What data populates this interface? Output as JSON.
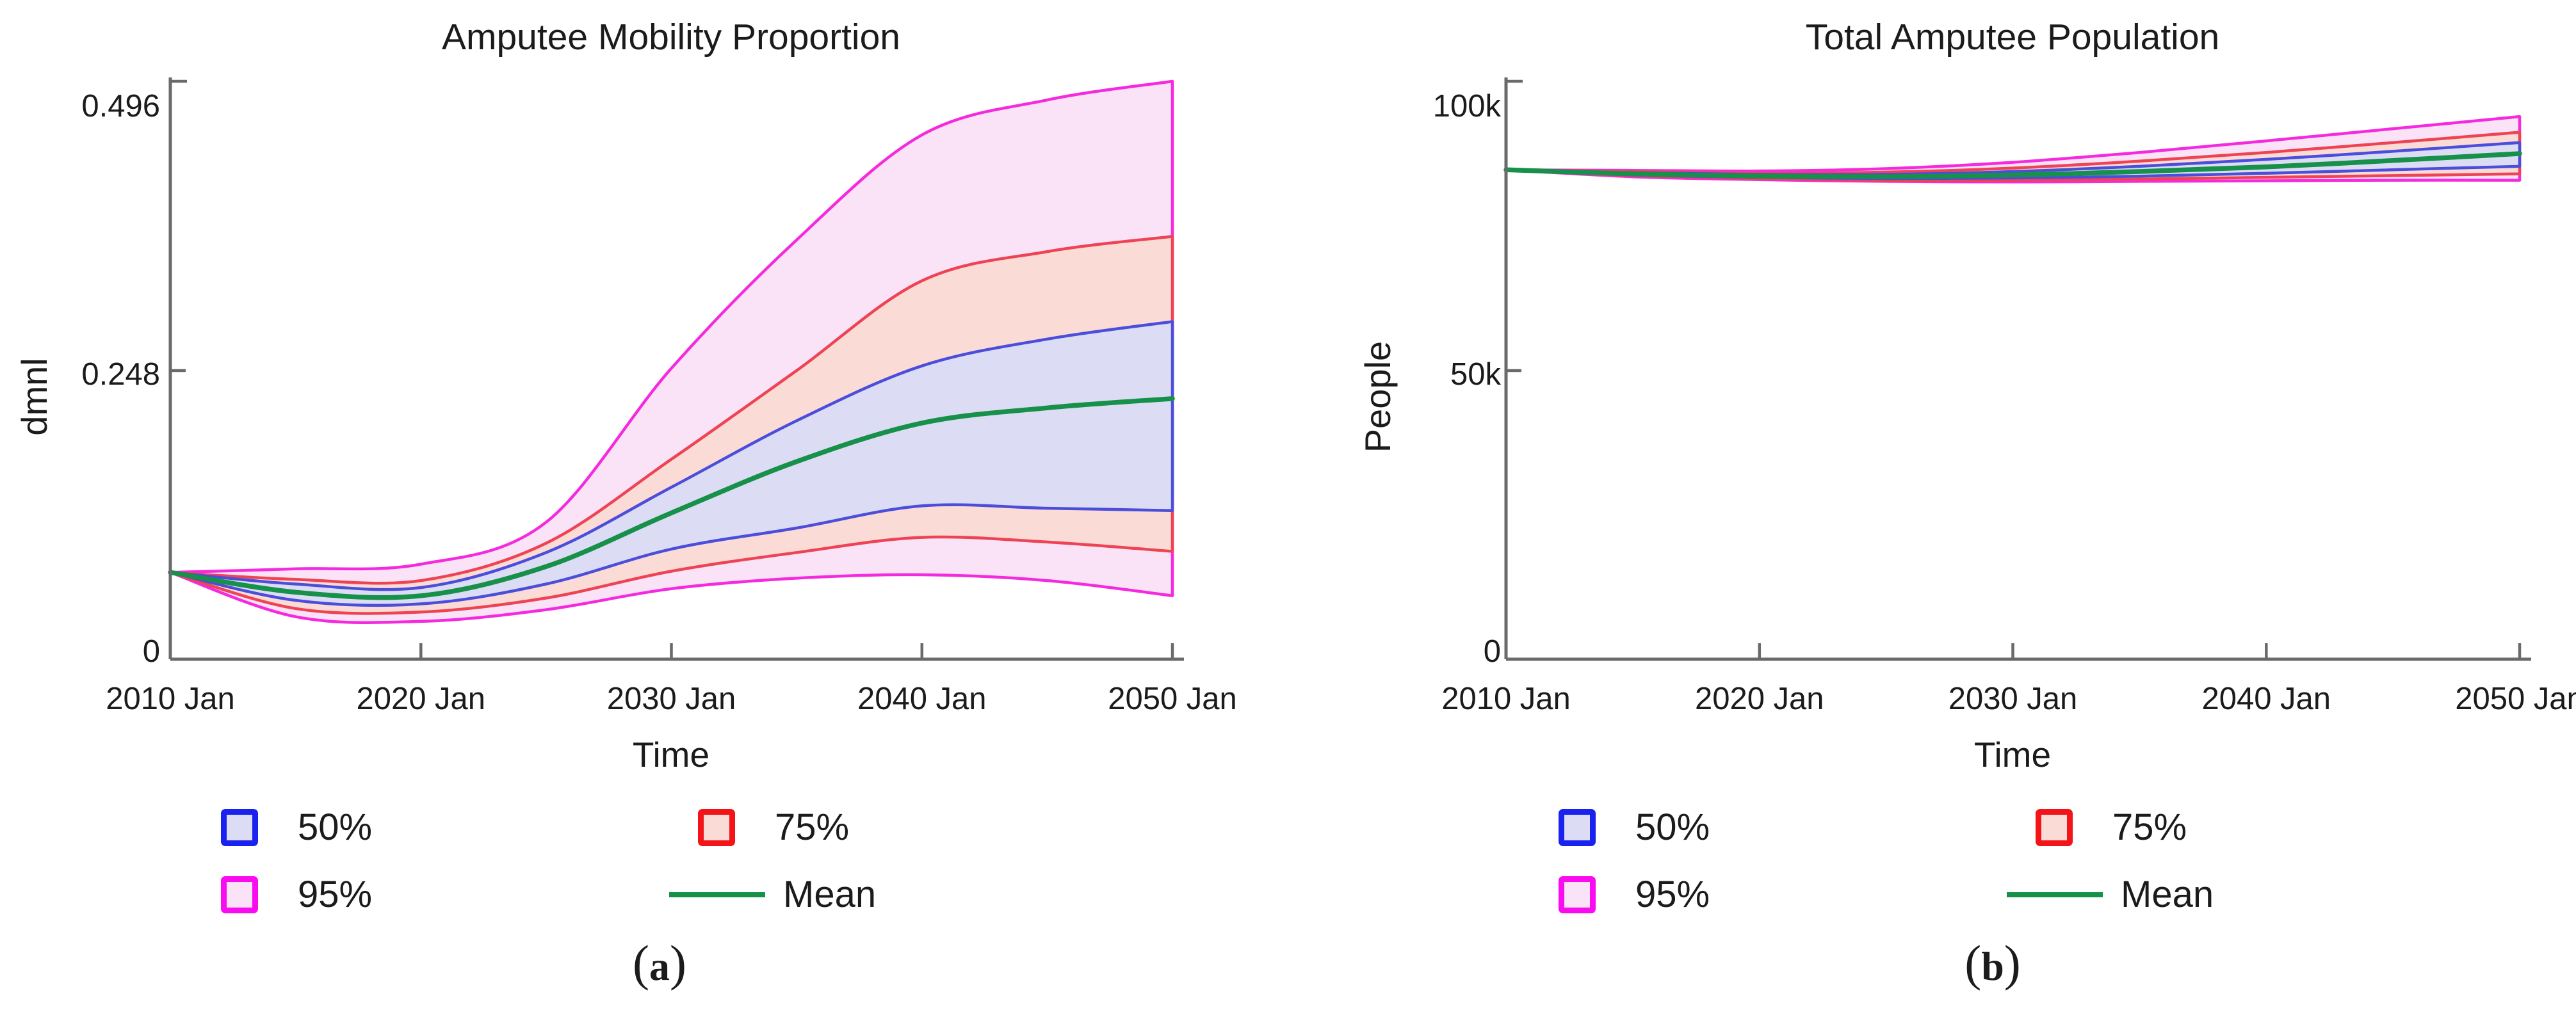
{
  "figure": {
    "background": "#ffffff",
    "description_visible_panels": 2
  },
  "legend": {
    "items": [
      {
        "label": "50%",
        "swatch": "band50"
      },
      {
        "label": "75%",
        "swatch": "band75"
      },
      {
        "label": "95%",
        "swatch": "band95"
      },
      {
        "label": "Mean",
        "swatch": "mean"
      }
    ]
  },
  "colors": {
    "band50": {
      "edge_line": "#4b4ddb",
      "edge_legend": "#1a22f0",
      "fill": "#dcddf5"
    },
    "band75": {
      "edge_line": "#ee4355",
      "edge_legend": "#f21418",
      "fill": "#fadbd5"
    },
    "band95": {
      "edge_line": "#f52ade",
      "edge_legend": "#fb0cf0",
      "fill": "#fae3f6"
    },
    "mean": {
      "line": "#17904a"
    },
    "axis": "#6a6a6a",
    "text": "#1b1b1b"
  },
  "chart_data": [
    {
      "type": "area",
      "subtype": "fan-confidence-bands",
      "title": "Amputee Mobility Proportion",
      "xlabel": "Time",
      "ylabel": "dmnl",
      "caption": {
        "open": "(",
        "letter": "a",
        "close": ")"
      },
      "x": [
        2010,
        2015,
        2020,
        2025,
        2030,
        2035,
        2040,
        2045,
        2050
      ],
      "x_tick_labels": [
        "2010 Jan",
        "2020 Jan",
        "2030 Jan",
        "2040 Jan",
        "2050 Jan"
      ],
      "y_ticks": [
        {
          "label": "0.496",
          "value": 0.496
        },
        {
          "label": "0.248",
          "value": 0.248
        },
        {
          "label": "0",
          "value": 0
        }
      ],
      "ylim": [
        0,
        0.496
      ],
      "grid": false,
      "legend_position": "bottom",
      "bands": [
        {
          "name": "95%",
          "color_key": "band95",
          "upper": [
            0.075,
            0.078,
            0.082,
            0.118,
            0.25,
            0.36,
            0.45,
            0.48,
            0.496
          ],
          "lower": [
            0.075,
            0.037,
            0.033,
            0.043,
            0.061,
            0.07,
            0.073,
            0.068,
            0.055
          ]
        },
        {
          "name": "75%",
          "color_key": "band75",
          "upper": [
            0.075,
            0.069,
            0.068,
            0.1,
            0.172,
            0.248,
            0.325,
            0.35,
            0.363
          ],
          "lower": [
            0.075,
            0.044,
            0.041,
            0.053,
            0.076,
            0.092,
            0.105,
            0.101,
            0.093
          ]
        },
        {
          "name": "50%",
          "color_key": "band50",
          "upper": [
            0.075,
            0.065,
            0.062,
            0.092,
            0.148,
            0.205,
            0.252,
            0.275,
            0.29
          ],
          "lower": [
            0.075,
            0.051,
            0.048,
            0.065,
            0.095,
            0.113,
            0.132,
            0.13,
            0.128
          ]
        }
      ],
      "mean": [
        0.075,
        0.058,
        0.055,
        0.08,
        0.126,
        0.17,
        0.203,
        0.216,
        0.224
      ]
    },
    {
      "type": "area",
      "subtype": "fan-confidence-bands",
      "title": "Total Amputee Population",
      "xlabel": "Time",
      "ylabel": "People",
      "caption": {
        "open": "(",
        "letter": "b",
        "close": ")"
      },
      "x": [
        2010,
        2015,
        2020,
        2025,
        2030,
        2035,
        2040,
        2045,
        2050
      ],
      "x_tick_labels": [
        "2010 Jan",
        "2020 Jan",
        "2030 Jan",
        "2040 Jan",
        "2050 Jan"
      ],
      "y_ticks": [
        {
          "label": "100k",
          "value": 100000
        },
        {
          "label": "50k",
          "value": 50000
        },
        {
          "label": "0",
          "value": 0
        }
      ],
      "ylim": [
        0,
        100000
      ],
      "grid": false,
      "legend_position": "bottom",
      "bands": [
        {
          "name": "95%",
          "color_key": "band95",
          "upper": [
            84700,
            84600,
            84500,
            84900,
            86000,
            87700,
            89700,
            91800,
            93900
          ],
          "lower": [
            84700,
            83500,
            83000,
            82700,
            82600,
            82700,
            82800,
            82900,
            82900
          ]
        },
        {
          "name": "75%",
          "color_key": "band75",
          "upper": [
            84700,
            84400,
            84100,
            84300,
            85000,
            86200,
            87700,
            89400,
            91200
          ],
          "lower": [
            84700,
            83700,
            83200,
            82900,
            82900,
            83100,
            83400,
            83700,
            84000
          ]
        },
        {
          "name": "50%",
          "color_key": "band50",
          "upper": [
            84700,
            84200,
            83900,
            83900,
            84400,
            85300,
            86500,
            87900,
            89400
          ],
          "lower": [
            84700,
            83800,
            83400,
            83200,
            83300,
            83600,
            84100,
            84700,
            85300
          ]
        }
      ],
      "mean": [
        84700,
        84000,
        83600,
        83500,
        83800,
        84400,
        85200,
        86300,
        87500
      ]
    }
  ]
}
